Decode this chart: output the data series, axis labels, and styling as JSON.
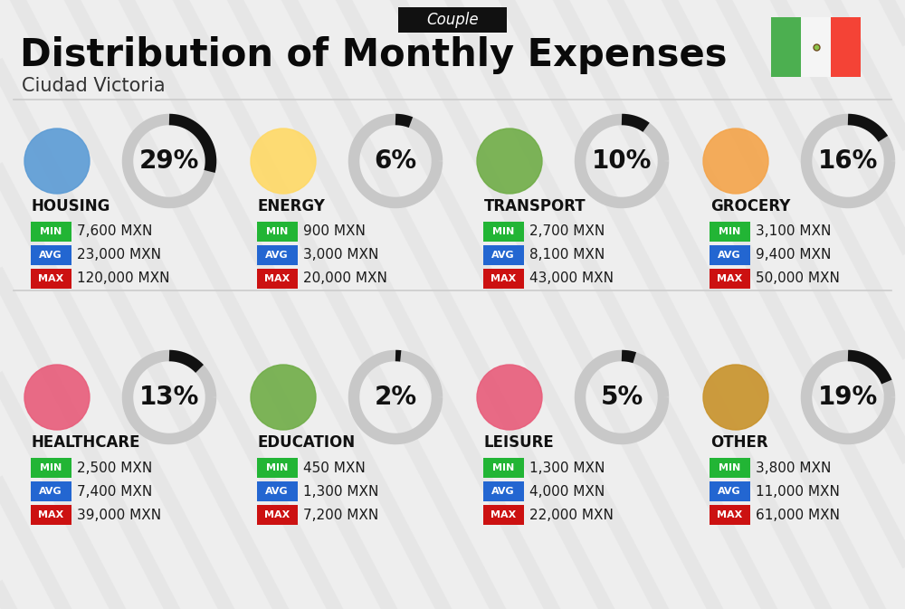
{
  "title": "Distribution of Monthly Expenses",
  "subtitle": "Ciudad Victoria",
  "couple_label": "Couple",
  "bg_color": "#eeeeee",
  "categories": [
    {
      "name": "HOUSING",
      "pct": 29,
      "min_val": "7,600 MXN",
      "avg_val": "23,000 MXN",
      "max_val": "120,000 MXN",
      "row": 0,
      "col": 0
    },
    {
      "name": "ENERGY",
      "pct": 6,
      "min_val": "900 MXN",
      "avg_val": "3,000 MXN",
      "max_val": "20,000 MXN",
      "row": 0,
      "col": 1
    },
    {
      "name": "TRANSPORT",
      "pct": 10,
      "min_val": "2,700 MXN",
      "avg_val": "8,100 MXN",
      "max_val": "43,000 MXN",
      "row": 0,
      "col": 2
    },
    {
      "name": "GROCERY",
      "pct": 16,
      "min_val": "3,100 MXN",
      "avg_val": "9,400 MXN",
      "max_val": "50,000 MXN",
      "row": 0,
      "col": 3
    },
    {
      "name": "HEALTHCARE",
      "pct": 13,
      "min_val": "2,500 MXN",
      "avg_val": "7,400 MXN",
      "max_val": "39,000 MXN",
      "row": 1,
      "col": 0
    },
    {
      "name": "EDUCATION",
      "pct": 2,
      "min_val": "450 MXN",
      "avg_val": "1,300 MXN",
      "max_val": "7,200 MXN",
      "row": 1,
      "col": 1
    },
    {
      "name": "LEISURE",
      "pct": 5,
      "min_val": "1,300 MXN",
      "avg_val": "4,000 MXN",
      "max_val": "22,000 MXN",
      "row": 1,
      "col": 2
    },
    {
      "name": "OTHER",
      "pct": 19,
      "min_val": "3,800 MXN",
      "avg_val": "11,000 MXN",
      "max_val": "61,000 MXN",
      "row": 1,
      "col": 3
    }
  ],
  "min_color": "#22b535",
  "avg_color": "#2366d1",
  "max_color": "#cc1111",
  "donut_bg_color": "#c8c8c8",
  "donut_fg_color": "#111111",
  "stripe_color": "#e0e0e0",
  "flag_green": "#4caf50",
  "flag_white": "#ffffff",
  "flag_red": "#f44336",
  "title_fontsize": 30,
  "subtitle_fontsize": 15,
  "couple_fontsize": 12,
  "cat_fontsize": 12,
  "val_fontsize": 11,
  "badge_fontsize": 8,
  "pct_fontsize": 20
}
